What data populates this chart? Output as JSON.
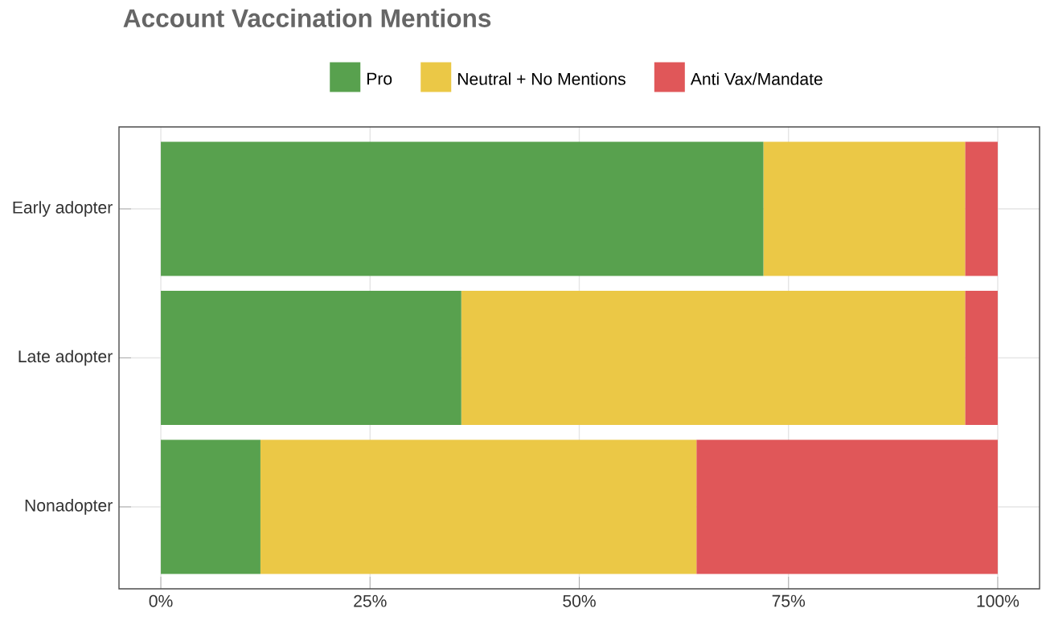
{
  "chart_data": {
    "type": "bar",
    "orientation": "horizontal",
    "stacked": true,
    "title": "Account Vaccination Mentions",
    "categories": [
      "Early adopter",
      "Late adopter",
      "Nonadopter"
    ],
    "series": [
      {
        "name": "Pro",
        "color": "#58a14e",
        "values": [
          72.0,
          35.9,
          11.9
        ]
      },
      {
        "name": "Neutral + No Mentions",
        "color": "#ebc846",
        "values": [
          24.1,
          60.2,
          52.1
        ]
      },
      {
        "name": "Anti Vax/Mandate",
        "color": "#e05759",
        "values": [
          3.9,
          3.9,
          36.0
        ]
      }
    ],
    "xlim": [
      -5,
      105
    ],
    "xticks": [
      {
        "value": 0,
        "label": "0%"
      },
      {
        "value": 25,
        "label": "25%"
      },
      {
        "value": 50,
        "label": "50%"
      },
      {
        "value": 75,
        "label": "75%"
      },
      {
        "value": 100,
        "label": "100%"
      }
    ],
    "grid": true,
    "legend": "top"
  }
}
